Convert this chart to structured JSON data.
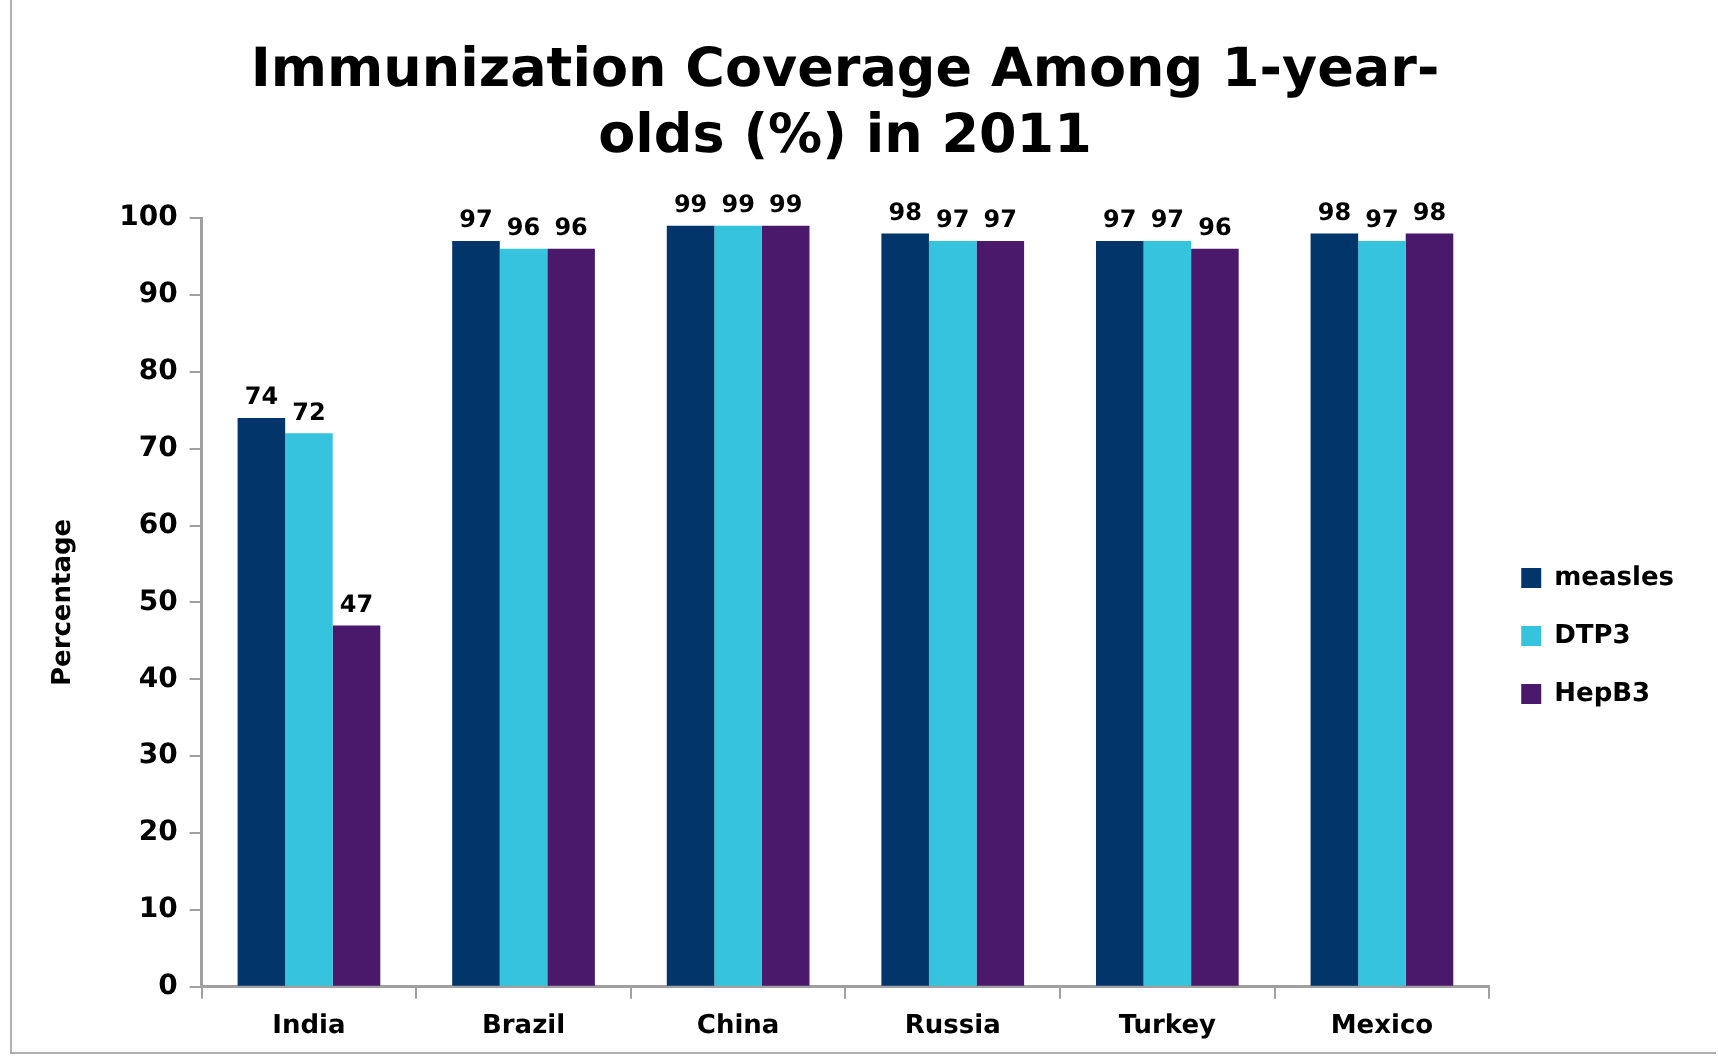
{
  "chart_data": {
    "type": "bar",
    "title": "Immunization Coverage Among 1-year-olds (%) in 2011",
    "ylabel": "Percentage",
    "categories": [
      "India",
      "Brazil",
      "China",
      "Russia",
      "Turkey",
      "Mexico"
    ],
    "series": [
      {
        "name": "measles",
        "color": "#02366a",
        "values": [
          74,
          97,
          99,
          98,
          97,
          98
        ]
      },
      {
        "name": "DTP3",
        "color": "#35c3de",
        "values": [
          72,
          96,
          99,
          97,
          97,
          97
        ]
      },
      {
        "name": "HepB3",
        "color": "#4a196b",
        "values": [
          47,
          96,
          99,
          97,
          96,
          98
        ]
      }
    ],
    "ylim": [
      0,
      100
    ],
    "yticks": [
      0,
      10,
      20,
      30,
      40,
      50,
      60,
      70,
      80,
      90,
      100
    ],
    "grid": false,
    "legend": "right",
    "data_labels": true
  }
}
